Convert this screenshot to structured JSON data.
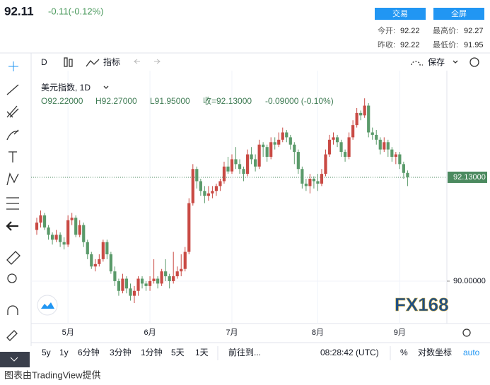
{
  "header": {
    "price": "92.11",
    "change": "-0.11(-0.12%)",
    "buttons": [
      "交易",
      "全屏"
    ],
    "stats": [
      {
        "label": "今开:",
        "value": "92.22"
      },
      {
        "label": "最高价:",
        "value": "92.27"
      },
      {
        "label": "昨收:",
        "value": "92.22"
      },
      {
        "label": "最低价:",
        "value": "91.95"
      }
    ]
  },
  "toolbar": {
    "interval": "D",
    "indicators": "指标",
    "save": "保存"
  },
  "legend": {
    "symbol": "美元指数, 1D",
    "open": "O92.22000",
    "high": "H92.27000",
    "low": "L91.95000",
    "close": "收=92.13000",
    "change": "-0.09000 (-0.10%)"
  },
  "watermark": "FX168",
  "bottom_bar": {
    "ranges": [
      "5y",
      "1y",
      "6分钟",
      "3分钟",
      "1分钟",
      "5天",
      "1天"
    ],
    "goto": "前往到...",
    "time": "08:28:42 (UTC)",
    "percent": "%",
    "log": "对数坐标",
    "auto": "auto"
  },
  "footer": "图表由TradingView提供",
  "chart_data": {
    "type": "candlestick",
    "up_color": "#c94a44",
    "down_color": "#5a9a6a",
    "grid": true,
    "ylim": [
      89.13,
      94.39
    ],
    "yticks": [
      {
        "value": 90,
        "label": "90.00000"
      }
    ],
    "last_price": {
      "value": 92.13,
      "label": "92.13000"
    },
    "categories": [
      null,
      null,
      null,
      null,
      null,
      null,
      null,
      null,
      "5月",
      null,
      null,
      null,
      null,
      null,
      null,
      null,
      null,
      null,
      null,
      null,
      null,
      null,
      null,
      null,
      null,
      null,
      null,
      null,
      null,
      "6月",
      null,
      null,
      null,
      null,
      null,
      null,
      null,
      null,
      null,
      null,
      null,
      null,
      null,
      null,
      null,
      null,
      null,
      null,
      null,
      null,
      "7月",
      null,
      null,
      null,
      null,
      null,
      null,
      null,
      null,
      null,
      null,
      null,
      null,
      null,
      null,
      null,
      null,
      null,
      null,
      null,
      null,
      null,
      "8月",
      null,
      null,
      null,
      null,
      null,
      null,
      null,
      null,
      null,
      null,
      null,
      null,
      null,
      null,
      null,
      null,
      null,
      null,
      null,
      null,
      "9月",
      null,
      null
    ],
    "ohlc": [
      [
        91.05,
        91.3,
        90.95,
        91.2
      ],
      [
        91.2,
        91.45,
        91.1,
        91.35
      ],
      [
        91.35,
        91.4,
        91.05,
        91.1
      ],
      [
        91.1,
        91.15,
        90.85,
        90.95
      ],
      [
        90.95,
        91.0,
        90.75,
        90.85
      ],
      [
        90.85,
        91.05,
        90.8,
        90.95
      ],
      [
        90.95,
        91.0,
        90.7,
        90.8
      ],
      [
        90.8,
        90.9,
        90.65,
        90.75
      ],
      [
        90.75,
        91.35,
        90.7,
        91.25
      ],
      [
        91.25,
        91.4,
        91.15,
        91.3
      ],
      [
        91.3,
        91.35,
        90.9,
        90.95
      ],
      [
        90.95,
        91.25,
        90.9,
        91.15
      ],
      [
        91.15,
        91.2,
        90.7,
        90.8
      ],
      [
        90.8,
        90.85,
        90.45,
        90.55
      ],
      [
        90.55,
        90.6,
        90.25,
        90.3
      ],
      [
        90.3,
        90.45,
        90.2,
        90.35
      ],
      [
        90.35,
        90.55,
        90.3,
        90.45
      ],
      [
        90.45,
        90.85,
        90.4,
        90.8
      ],
      [
        90.8,
        90.85,
        90.45,
        90.55
      ],
      [
        90.55,
        90.6,
        90.15,
        90.2
      ],
      [
        90.2,
        90.3,
        89.9,
        90.0
      ],
      [
        90.0,
        90.05,
        89.7,
        89.8
      ],
      [
        89.8,
        90.15,
        89.75,
        90.05
      ],
      [
        90.05,
        90.1,
        89.75,
        89.85
      ],
      [
        89.85,
        89.95,
        89.6,
        89.7
      ],
      [
        89.7,
        89.9,
        89.55,
        89.8
      ],
      [
        89.8,
        90.1,
        89.7,
        90.05
      ],
      [
        90.05,
        90.1,
        89.85,
        89.95
      ],
      [
        89.95,
        90.0,
        89.8,
        89.9
      ],
      [
        89.9,
        90.1,
        89.8,
        90.0
      ],
      [
        90.0,
        90.45,
        89.95,
        90.05
      ],
      [
        90.05,
        90.1,
        89.85,
        89.95
      ],
      [
        89.95,
        90.25,
        89.9,
        90.2
      ],
      [
        90.2,
        90.45,
        90.0,
        90.1
      ],
      [
        90.1,
        90.15,
        89.85,
        90.0
      ],
      [
        90.0,
        90.6,
        89.95,
        90.1
      ],
      [
        90.1,
        90.3,
        90.05,
        90.2
      ],
      [
        90.2,
        90.55,
        90.1,
        90.25
      ],
      [
        90.25,
        90.7,
        90.2,
        90.6
      ],
      [
        90.6,
        91.7,
        90.55,
        91.6
      ],
      [
        91.6,
        92.4,
        91.55,
        92.3
      ],
      [
        92.3,
        92.35,
        91.9,
        92.05
      ],
      [
        92.05,
        92.1,
        91.75,
        91.85
      ],
      [
        91.85,
        91.95,
        91.6,
        91.75
      ],
      [
        91.75,
        91.95,
        91.65,
        91.8
      ],
      [
        91.8,
        91.95,
        91.7,
        91.85
      ],
      [
        91.85,
        92.0,
        91.75,
        91.95
      ],
      [
        91.95,
        92.1,
        91.85,
        92.05
      ],
      [
        92.05,
        92.45,
        92.0,
        92.35
      ],
      [
        92.35,
        92.55,
        92.2,
        92.25
      ],
      [
        92.25,
        92.6,
        92.2,
        92.5
      ],
      [
        92.5,
        92.75,
        92.3,
        92.4
      ],
      [
        92.4,
        92.5,
        92.2,
        92.3
      ],
      [
        92.3,
        92.35,
        92.05,
        92.2
      ],
      [
        92.2,
        92.7,
        92.15,
        92.6
      ],
      [
        92.6,
        92.75,
        92.4,
        92.5
      ],
      [
        92.5,
        92.6,
        92.25,
        92.35
      ],
      [
        92.35,
        92.9,
        92.3,
        92.8
      ],
      [
        92.8,
        92.85,
        92.55,
        92.75
      ],
      [
        92.75,
        92.8,
        92.45,
        92.55
      ],
      [
        92.55,
        92.95,
        92.5,
        92.85
      ],
      [
        92.85,
        92.95,
        92.7,
        92.8
      ],
      [
        92.8,
        93.05,
        92.75,
        92.9
      ],
      [
        92.9,
        93.15,
        92.85,
        93.05
      ],
      [
        93.05,
        93.1,
        92.85,
        92.95
      ],
      [
        92.95,
        93.0,
        92.7,
        92.8
      ],
      [
        92.8,
        92.85,
        92.4,
        92.65
      ],
      [
        92.65,
        92.7,
        92.2,
        92.3
      ],
      [
        92.3,
        92.35,
        91.9,
        92.0
      ],
      [
        92.0,
        92.1,
        91.85,
        91.95
      ],
      [
        91.95,
        92.2,
        91.8,
        92.1
      ],
      [
        92.1,
        92.15,
        91.9,
        92.05
      ],
      [
        92.05,
        92.2,
        91.85,
        92.0
      ],
      [
        92.0,
        92.3,
        91.95,
        92.2
      ],
      [
        92.2,
        92.7,
        92.15,
        92.6
      ],
      [
        92.6,
        93.0,
        92.55,
        92.9
      ],
      [
        92.9,
        93.05,
        92.8,
        92.95
      ],
      [
        92.95,
        93.0,
        92.75,
        92.85
      ],
      [
        92.85,
        92.9,
        92.55,
        92.65
      ],
      [
        92.65,
        92.7,
        92.45,
        92.55
      ],
      [
        92.55,
        93.05,
        92.5,
        92.95
      ],
      [
        92.95,
        93.3,
        92.9,
        93.2
      ],
      [
        93.2,
        93.55,
        93.15,
        93.45
      ],
      [
        93.45,
        93.5,
        93.3,
        93.4
      ],
      [
        93.4,
        93.75,
        93.35,
        93.6
      ],
      [
        93.6,
        93.65,
        92.95,
        93.05
      ],
      [
        93.05,
        93.15,
        92.9,
        93.0
      ],
      [
        93.0,
        93.1,
        92.8,
        92.9
      ],
      [
        92.9,
        92.95,
        92.6,
        92.7
      ],
      [
        92.7,
        92.95,
        92.65,
        92.85
      ],
      [
        92.85,
        92.9,
        92.55,
        92.7
      ],
      [
        92.7,
        92.75,
        92.45,
        92.55
      ],
      [
        92.55,
        92.65,
        92.4,
        92.6
      ],
      [
        92.6,
        92.65,
        92.3,
        92.4
      ],
      [
        92.4,
        92.45,
        92.1,
        92.22
      ],
      [
        92.22,
        92.27,
        91.95,
        92.13
      ]
    ]
  }
}
